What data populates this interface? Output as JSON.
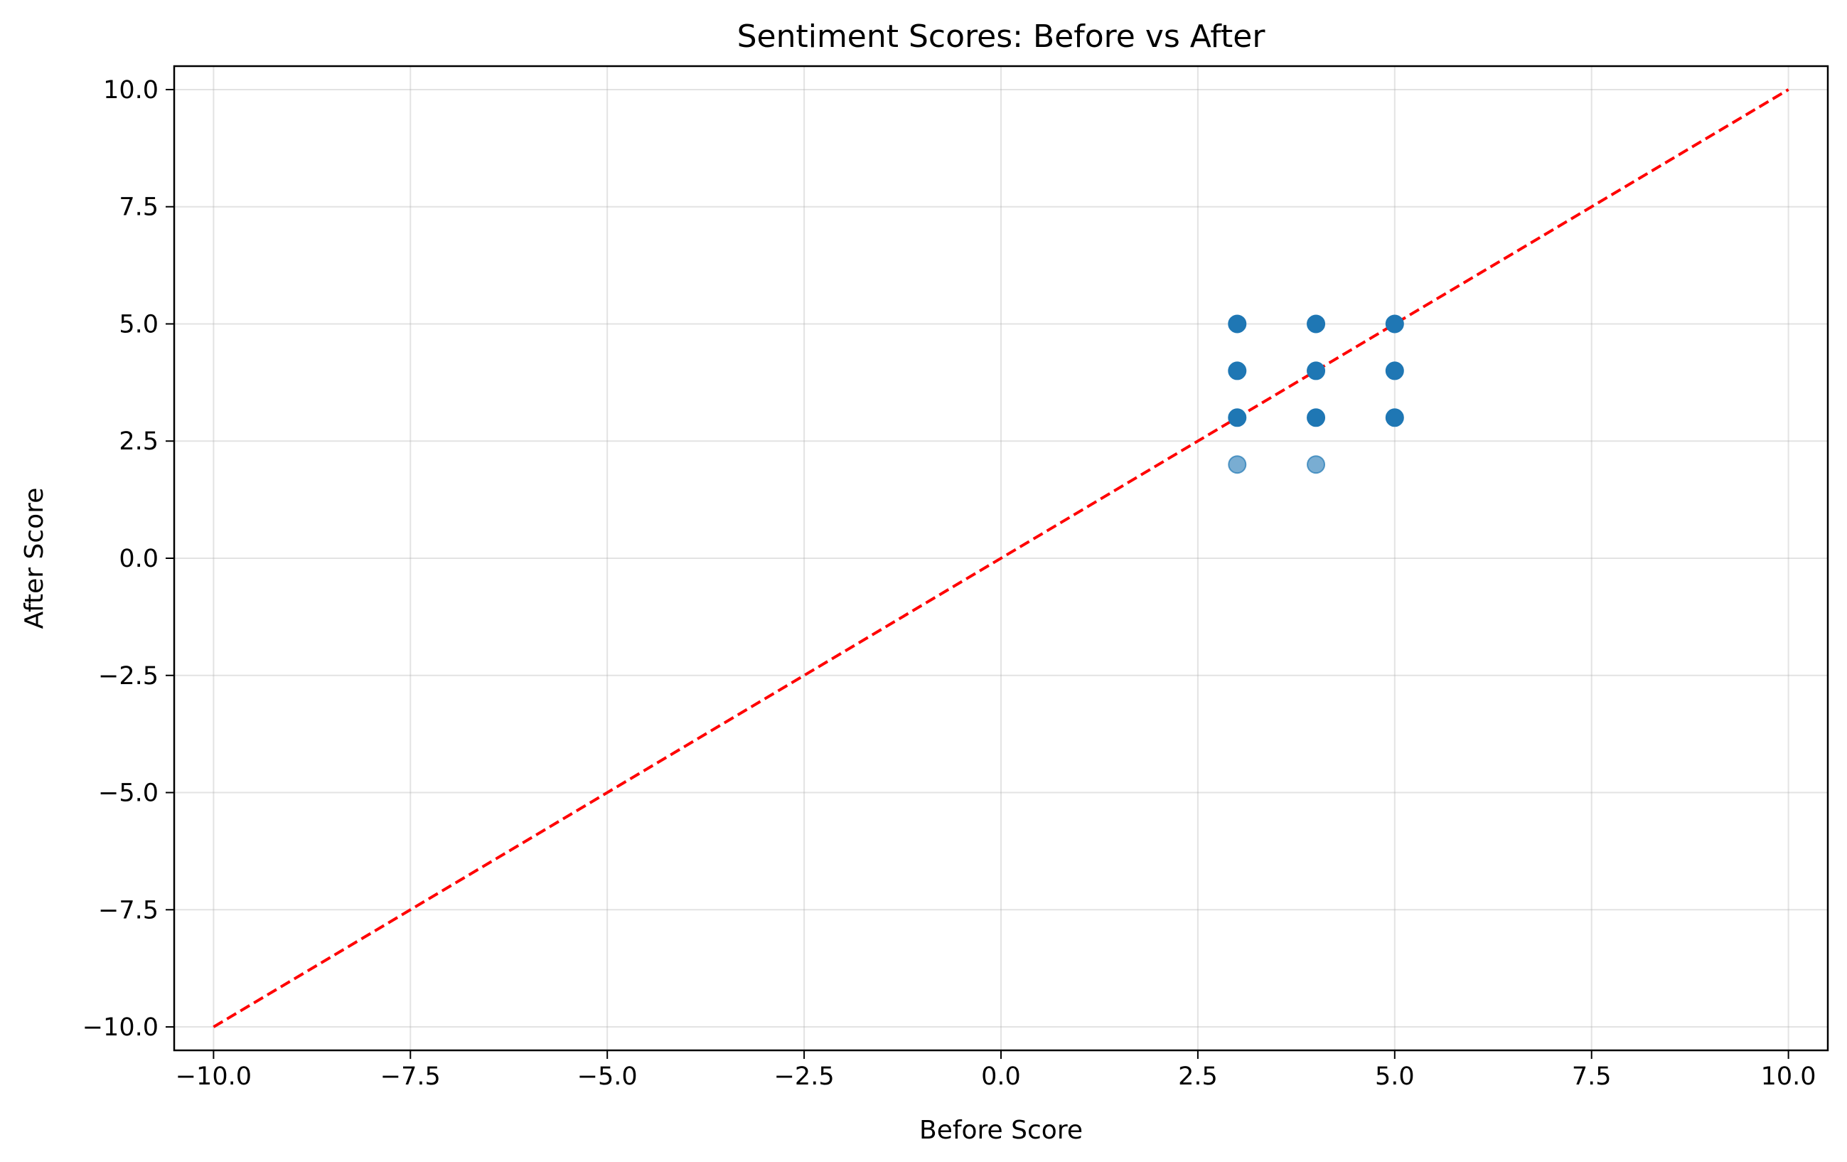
{
  "chart_data": {
    "type": "scatter",
    "title": "Sentiment Scores: Before vs After",
    "xlabel": "Before Score",
    "ylabel": "After Score",
    "xlim": [
      -10.5,
      10.5
    ],
    "ylim": [
      -10.5,
      10.5
    ],
    "x_ticks": [
      -10.0,
      -7.5,
      -5.0,
      -2.5,
      0.0,
      2.5,
      5.0,
      7.5,
      10.0
    ],
    "y_ticks": [
      -10.0,
      -7.5,
      -5.0,
      -2.5,
      0.0,
      2.5,
      5.0,
      7.5,
      10.0
    ],
    "x_tick_labels": [
      "−10.0",
      "−7.5",
      "−5.0",
      "−2.5",
      "0.0",
      "2.5",
      "5.0",
      "7.5",
      "10.0"
    ],
    "y_tick_labels": [
      "−10.0",
      "−7.5",
      "−5.0",
      "−2.5",
      "0.0",
      "2.5",
      "5.0",
      "7.5",
      "10.0"
    ],
    "grid": true,
    "point_color": "#1f77b4",
    "reference_line_color": "#ff0000",
    "points": [
      {
        "x": 3,
        "y": 5,
        "opacity": 1.0
      },
      {
        "x": 4,
        "y": 5,
        "opacity": 1.0
      },
      {
        "x": 5,
        "y": 5,
        "opacity": 1.0
      },
      {
        "x": 3,
        "y": 4,
        "opacity": 1.0
      },
      {
        "x": 4,
        "y": 4,
        "opacity": 1.0
      },
      {
        "x": 5,
        "y": 4,
        "opacity": 1.0
      },
      {
        "x": 3,
        "y": 3,
        "opacity": 1.0
      },
      {
        "x": 4,
        "y": 3,
        "opacity": 1.0
      },
      {
        "x": 5,
        "y": 3,
        "opacity": 1.0
      },
      {
        "x": 3,
        "y": 2,
        "opacity": 0.6
      },
      {
        "x": 4,
        "y": 2,
        "opacity": 0.6
      }
    ],
    "reference_line": {
      "x": [
        -10,
        10
      ],
      "y": [
        -10,
        10
      ],
      "style": "dashed"
    }
  }
}
